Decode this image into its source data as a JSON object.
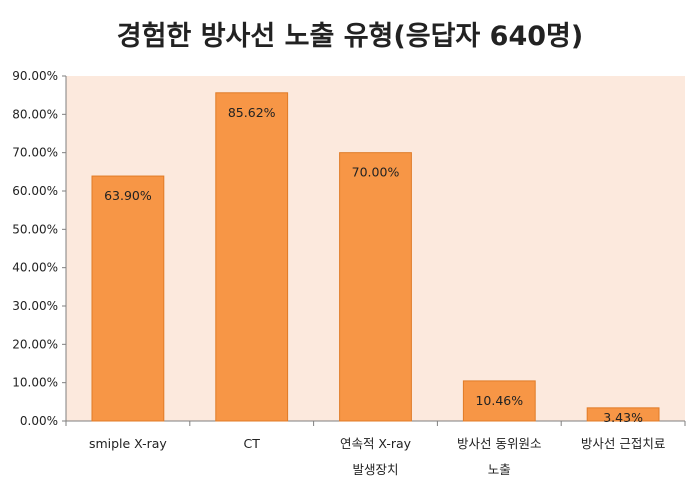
{
  "chart_data": {
    "type": "bar",
    "title": "경험한 방사선 노출 유형(응답자 640명)",
    "categories": [
      [
        "smiple X-ray"
      ],
      [
        "CT"
      ],
      [
        "연속적 X-ray",
        "발생장치"
      ],
      [
        "방사선 동위원소",
        "노출"
      ],
      [
        "방사선 근접치료"
      ]
    ],
    "values": [
      63.9,
      85.62,
      70.0,
      10.46,
      3.43
    ],
    "data_labels": [
      "63.90%",
      "85.62%",
      "70.00%",
      "10.46%",
      "3.43%"
    ],
    "y_ticks": [
      "0.00%",
      "10.00%",
      "20.00%",
      "30.00%",
      "40.00%",
      "50.00%",
      "60.00%",
      "70.00%",
      "80.00%",
      "90.00%"
    ],
    "ylim": [
      0,
      90
    ],
    "xlabel": "",
    "ylabel": "",
    "grid": false,
    "legend": "none",
    "colors": {
      "bar_fill": "#F79646",
      "bar_stroke": "#E07B27",
      "plot_background": "#FCE9DD",
      "axis": "#7F7F7F"
    }
  }
}
